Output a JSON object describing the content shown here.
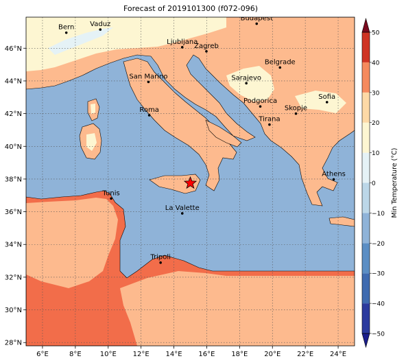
{
  "title": "Forecast of 2019101300 (f072-096)",
  "lon_ticks": [
    "6°E",
    "8°E",
    "10°E",
    "12°E",
    "14°E",
    "16°E",
    "18°E",
    "20°E",
    "22°E",
    "24°E"
  ],
  "lat_ticks": [
    "28°N",
    "30°N",
    "32°N",
    "34°N",
    "36°N",
    "38°N",
    "40°N",
    "42°N",
    "44°N",
    "46°N"
  ],
  "cities": [
    {
      "name": "Bern",
      "lon": 7.45,
      "lat": 46.95
    },
    {
      "name": "Vaduz",
      "lon": 9.52,
      "lat": 47.14
    },
    {
      "name": "Budapest",
      "lon": 19.04,
      "lat": 47.5
    },
    {
      "name": "Ljubljana",
      "lon": 14.51,
      "lat": 46.06
    },
    {
      "name": "Zagreb",
      "lon": 15.98,
      "lat": 45.81
    },
    {
      "name": "Belgrade",
      "lon": 20.46,
      "lat": 44.82
    },
    {
      "name": "San Marino",
      "lon": 12.45,
      "lat": 43.94
    },
    {
      "name": "Sarajevo",
      "lon": 18.41,
      "lat": 43.86
    },
    {
      "name": "Sofia",
      "lon": 23.32,
      "lat": 42.7
    },
    {
      "name": "Podgorica",
      "lon": 19.26,
      "lat": 42.44
    },
    {
      "name": "Skopje",
      "lon": 21.43,
      "lat": 42.0
    },
    {
      "name": "Roma",
      "lon": 12.5,
      "lat": 41.9
    },
    {
      "name": "Tirana",
      "lon": 19.82,
      "lat": 41.33
    },
    {
      "name": "Athens",
      "lon": 23.73,
      "lat": 37.98
    },
    {
      "name": "Tunis",
      "lon": 10.18,
      "lat": 36.81
    },
    {
      "name": "La Valette",
      "lon": 14.51,
      "lat": 35.9
    },
    {
      "name": "Tripoli",
      "lon": 13.19,
      "lat": 32.89
    }
  ],
  "marker": {
    "lon": 15.0,
    "lat": 37.75,
    "color": "#ff0000"
  },
  "colorbar": {
    "label": "Min Temperature (°C)",
    "ticks": [
      "−50",
      "−40",
      "−30",
      "−20",
      "−10",
      "0",
      "10",
      "20",
      "30",
      "40",
      "50"
    ],
    "colors": [
      "#1b1e8c",
      "#2b3a9e",
      "#3f6bb0",
      "#5b8ec4",
      "#8fb3d8",
      "#bcd7e8",
      "#e5f2f6",
      "#fdf6d2",
      "#fdd9a6",
      "#fbb27f",
      "#f58a5e",
      "#e8603c",
      "#cf3424",
      "#a81521",
      "#7a0a1e"
    ]
  },
  "regions": {
    "sea": "#8fb3d8",
    "warm_land": "#fdba8e",
    "hot_land": "#f26d4a",
    "cool_land": "#fdf6d2",
    "cold_land": "#e5f2f6"
  }
}
